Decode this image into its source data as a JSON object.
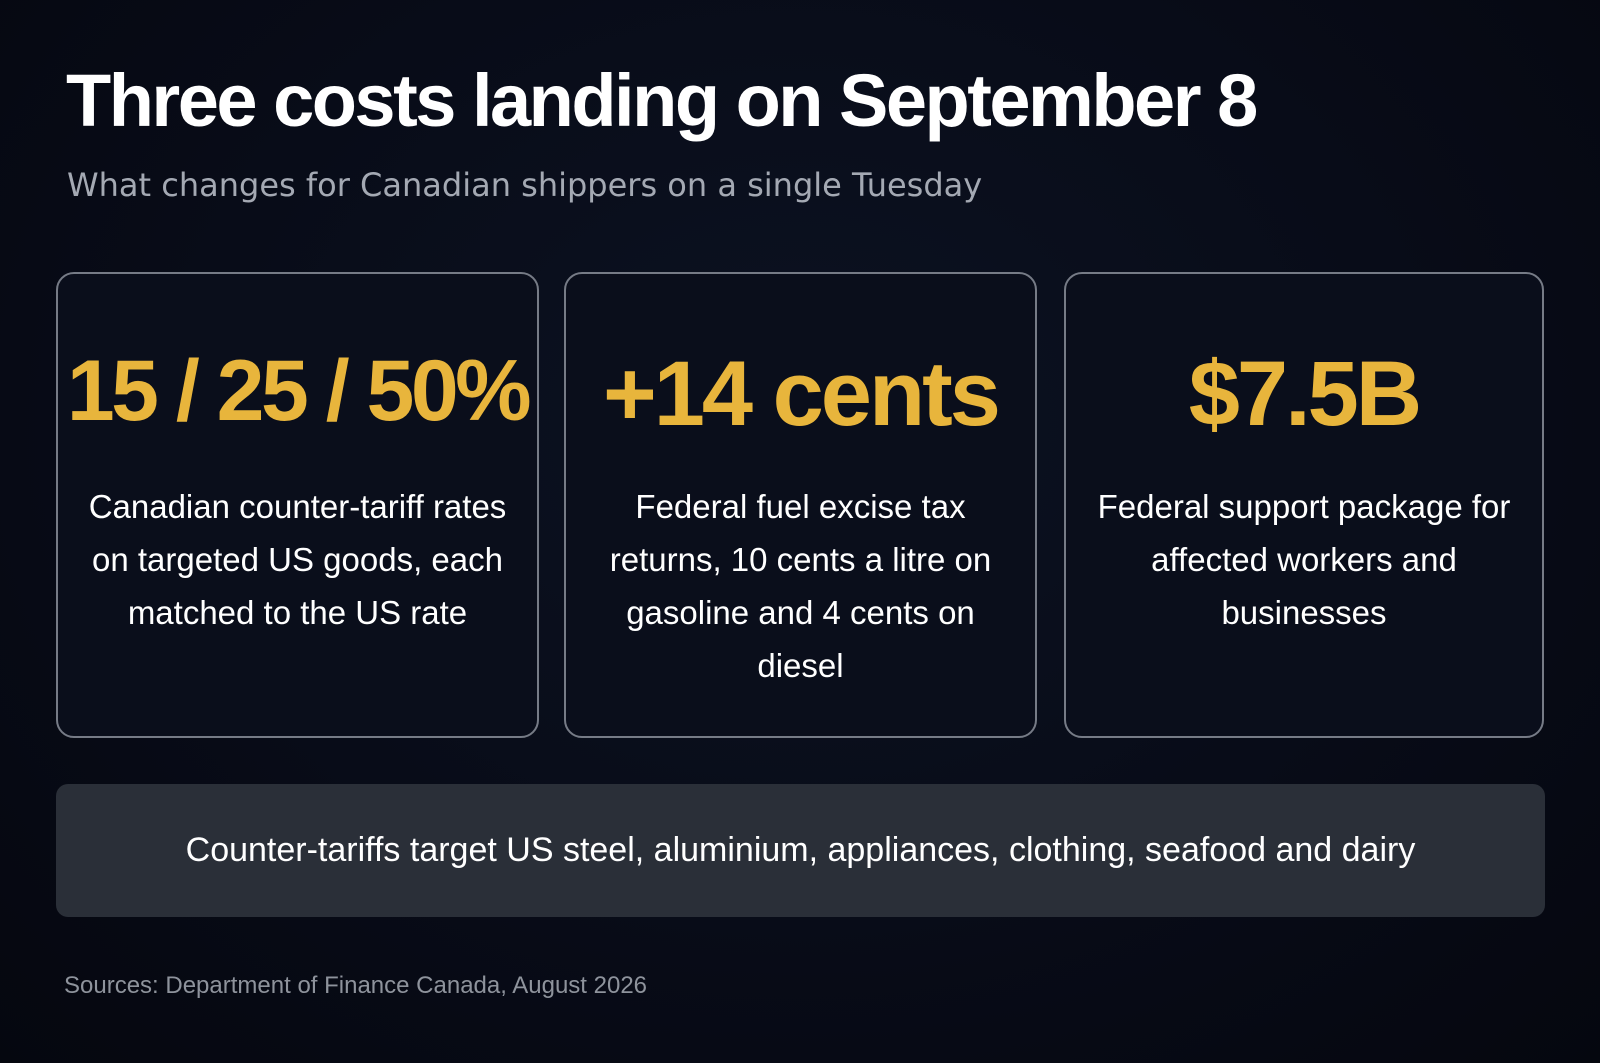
{
  "header": {
    "title": "Three costs landing on September 8",
    "subtitle": "What changes for Canadian shippers on a single Tuesday"
  },
  "cards": [
    {
      "stat": "15 / 25 / 50%",
      "description": "Canadian counter-tariff rates on targeted US goods, each matched to the US rate"
    },
    {
      "stat": "+14 cents",
      "description": "Federal fuel excise tax returns, 10 cents a litre on gasoline and 4 cents on diesel"
    },
    {
      "stat": "$7.5B",
      "description": "Federal support package for affected workers and businesses"
    }
  ],
  "banner": {
    "text": "Counter-tariffs target US steel, aluminium, appliances, clothing, seafood and dairy"
  },
  "footer": {
    "source": "Sources: Department of Finance Canada, August 2026"
  },
  "colors": {
    "background": "#080c18",
    "accent": "#e8b53c",
    "card_border": "#767b86",
    "banner_background": "#2a2f38",
    "subtitle": "#a4a9b3",
    "source": "#8e939c"
  }
}
